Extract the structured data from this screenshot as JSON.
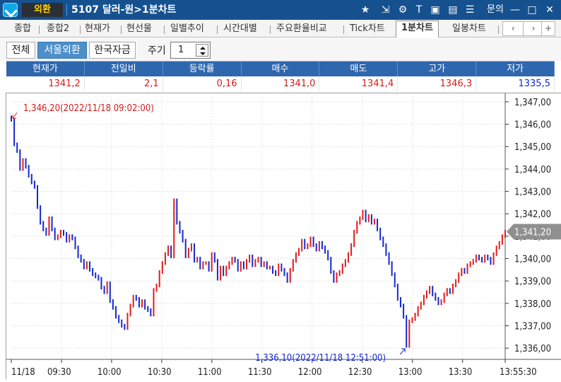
{
  "window": {
    "category": "외환",
    "title": "5107 달러-원>1분차트",
    "inquiry_label": "문의"
  },
  "tabs": [
    "종합",
    "종합2",
    "현재가",
    "현선물",
    "일별추이",
    "시간대별",
    "주요환율비교",
    "Tick차트",
    "1분차트",
    "일봉차트"
  ],
  "tab_active": "1분차트",
  "toolbar": {
    "filters": [
      "전체",
      "서울외환",
      "한국자금"
    ],
    "selected_filter": "서울외환",
    "period_label": "주기",
    "period_value": "1"
  },
  "quote": {
    "headers": [
      "현재가",
      "전일비",
      "등락률",
      "매수",
      "매도",
      "고가",
      "저가"
    ],
    "values": [
      "1341,2",
      "2,1",
      "0,16",
      "1341,0",
      "1341,4",
      "1346,3",
      "1335,5"
    ]
  },
  "chart_data": {
    "type": "line",
    "title": "",
    "xlabel": "",
    "ylabel": "",
    "ylim": [
      1335.5,
      1347.25
    ],
    "y_ticks": [
      "1,347,00",
      "1,346,00",
      "1,345,00",
      "1,344,00",
      "1,343,00",
      "1,342,00",
      "1,341,00",
      "1,340,00",
      "1,339,00",
      "1,338,00",
      "1,337,00",
      "1,336,00"
    ],
    "x_tick_labels": [
      "11/18",
      "09:30",
      "10:00",
      "10:30",
      "11:00",
      "11:30",
      "12:00",
      "12:30",
      "13:00",
      "13:30",
      "13:55:30"
    ],
    "x_tick_minutes": [
      0,
      30,
      60,
      90,
      120,
      150,
      180,
      210,
      240,
      270,
      295.5
    ],
    "current_label": "1,341,20",
    "current_value": 1341.2,
    "high_label": "1,346,20(2022/11/18 09:02:00)",
    "low_label": "1,336,10(2022/11/18 12:51:00)",
    "high_value": 1346.2,
    "low_value": 1336.1,
    "series": [
      {
        "values": [
          1346.2,
          1345.1,
          1344.8,
          1344.0,
          1344.4,
          1344.1,
          1343.7,
          1343.4,
          1343.2,
          1342.3,
          1341.6,
          1341.3,
          1341.1,
          1341.8,
          1341.3,
          1340.9,
          1341.0,
          1341.2,
          1341.1,
          1340.8,
          1341.0,
          1340.9,
          1340.5,
          1340.1,
          1339.9,
          1339.6,
          1339.8,
          1339.5,
          1339.3,
          1339.2,
          1339.1,
          1338.7,
          1338.5,
          1338.9,
          1338.1,
          1337.8,
          1337.4,
          1337.2,
          1337.0,
          1336.9,
          1337.5,
          1337.9,
          1338.3,
          1338.2,
          1337.9,
          1338.1,
          1337.8,
          1337.7,
          1337.5,
          1338.6,
          1338.8,
          1339.4,
          1339.8,
          1340.2,
          1340.5,
          1340.1,
          1342.6,
          1341.6,
          1341.2,
          1340.8,
          1340.1,
          1340.4,
          1340.6,
          1339.9,
          1340.0,
          1339.6,
          1339.8,
          1339.8,
          1339.5,
          1340.2,
          1339.9,
          1339.1,
          1339.6,
          1339.3,
          1339.6,
          1339.8,
          1340.0,
          1339.9,
          1339.5,
          1339.8,
          1339.6,
          1339.9,
          1340.1,
          1339.7,
          1339.9,
          1340.0,
          1339.7,
          1339.8,
          1339.6,
          1339.6,
          1339.4,
          1339.3,
          1339.7,
          1339.5,
          1339.3,
          1339.0,
          1339.5,
          1339.9,
          1340.2,
          1340.4,
          1340.8,
          1340.5,
          1340.6,
          1340.9,
          1340.6,
          1340.4,
          1340.7,
          1340.5,
          1340.3,
          1340.0,
          1339.4,
          1339.0,
          1339.3,
          1339.4,
          1339.7,
          1339.9,
          1340.2,
          1340.6,
          1341.2,
          1341.6,
          1341.8,
          1342.1,
          1341.7,
          1341.9,
          1341.6,
          1341.7,
          1341.3,
          1340.9,
          1340.6,
          1340.2,
          1339.8,
          1339.3,
          1338.8,
          1338.2,
          1337.9,
          1337.4,
          1336.1,
          1337.2,
          1337.3,
          1337.5,
          1337.8,
          1338.0,
          1338.3,
          1338.5,
          1338.7,
          1338.4,
          1338.2,
          1338.0,
          1338.1,
          1338.4,
          1338.6,
          1338.5,
          1338.8,
          1339.0,
          1339.3,
          1339.5,
          1339.4,
          1339.7,
          1339.8,
          1339.9,
          1340.1,
          1340.0,
          1339.9,
          1340.1,
          1340.0,
          1339.8,
          1340.2,
          1340.5,
          1340.7,
          1341.0,
          1341.2
        ]
      }
    ]
  },
  "colors": {
    "up": "#e21c1c",
    "down": "#1429d1",
    "title_bar": "#15518f",
    "header": "#2e67ad"
  },
  "icons": [
    "star-icon",
    "export-icon",
    "settings-icon",
    "text-icon",
    "chat-icon",
    "print-icon",
    "list-icon",
    "minimize-icon",
    "maximize-icon",
    "close-icon"
  ]
}
